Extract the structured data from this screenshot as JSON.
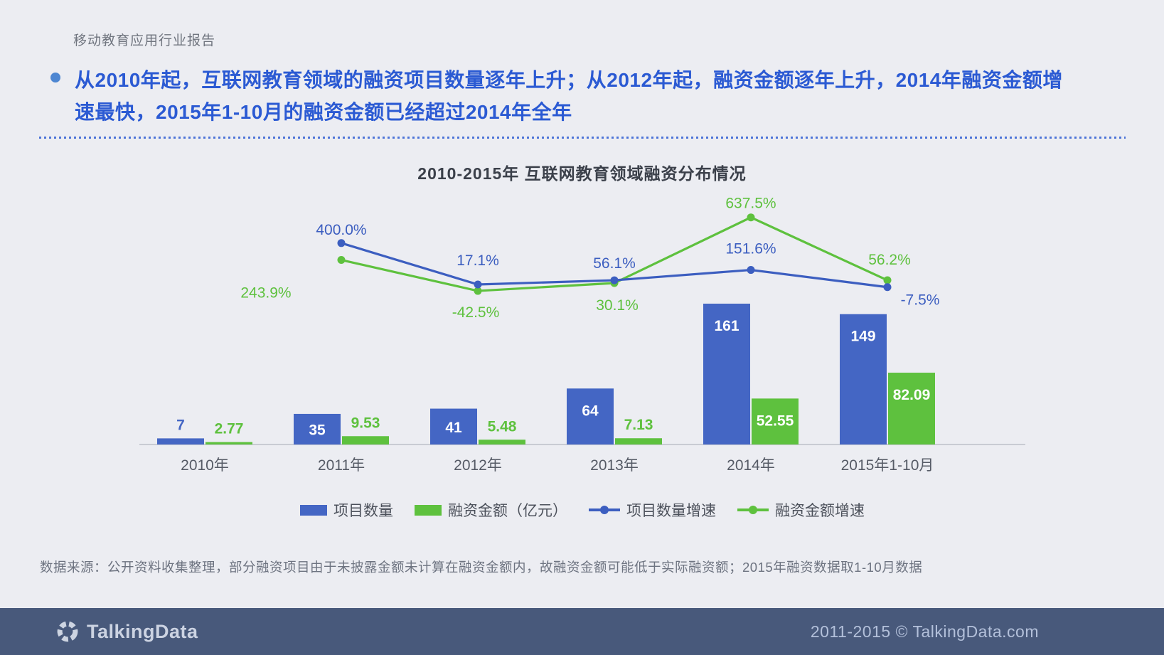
{
  "page": {
    "report_label": "移动教育应用行业报告",
    "headline": "从2010年起，互联网教育领域的融资项目数量逐年上升；从2012年起，融资金额逐年上升，2014年融资金额增速最快，2015年1-10月的融资金额已经超过2014年全年",
    "source_note": "数据来源：公开资料收集整理，部分融资项目由于未披露金额未计算在融资金额内，故融资金额可能低于实际融资额；2015年融资数据取1-10月数据"
  },
  "chart_data": {
    "type": "bar+line",
    "title": "2010-2015年  互联网教育领域融资分布情况",
    "categories": [
      "2010年",
      "2011年",
      "2012年",
      "2013年",
      "2014年",
      "2015年1-10月"
    ],
    "bar_series": [
      {
        "name": "项目数量",
        "color": "#4466c4",
        "values": [
          7,
          35,
          41,
          64,
          161,
          149
        ]
      },
      {
        "name": "融资金额（亿元）",
        "color": "#5ec13e",
        "values": [
          2.77,
          9.53,
          5.48,
          7.13,
          52.55,
          82.09
        ]
      }
    ],
    "line_series": [
      {
        "name": "项目数量增速",
        "color": "#3c5ec0",
        "unit": "%",
        "values": [
          null,
          400.0,
          17.1,
          56.1,
          151.6,
          -7.5
        ]
      },
      {
        "name": "融资金额增速",
        "color": "#5ec13e",
        "unit": "%",
        "values": [
          null,
          243.9,
          -42.5,
          30.1,
          637.5,
          56.2
        ]
      }
    ],
    "legend": [
      "项目数量",
      "融资金额（亿元）",
      "项目数量增速",
      "融资金额增速"
    ],
    "legend_position": "bottom",
    "grid": false,
    "xlabel": "",
    "ylabel": ""
  },
  "footer": {
    "brand": "TalkingData",
    "copyright": "2011-2015 © TalkingData.com"
  }
}
